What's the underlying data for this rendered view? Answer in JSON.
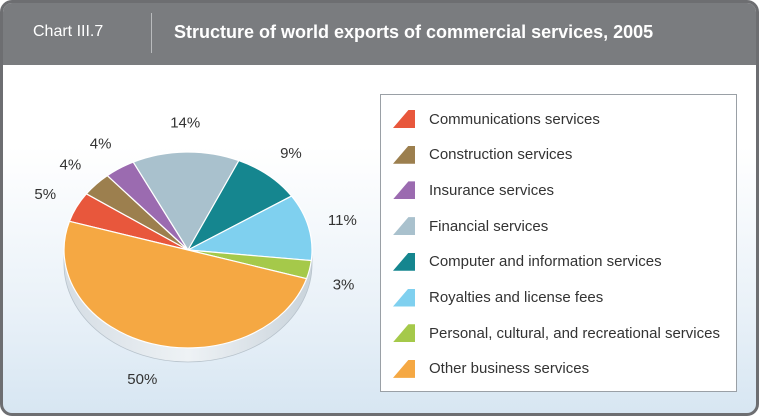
{
  "header": {
    "chart_label": "Chart III.7",
    "title": "Structure of world exports of commercial services, 2005"
  },
  "chart_data": {
    "type": "pie",
    "title": "Structure of world exports of commercial services, 2005",
    "legend_position": "right",
    "slices": [
      {
        "name": "Communications services",
        "value": 5,
        "label": "5%",
        "color": "#e8573c"
      },
      {
        "name": "Construction services",
        "value": 4,
        "label": "4%",
        "color": "#9c7f4e"
      },
      {
        "name": "Insurance services",
        "value": 4,
        "label": "4%",
        "color": "#9b6bb0"
      },
      {
        "name": "Financial services",
        "value": 14,
        "label": "14%",
        "color": "#a9c1cd"
      },
      {
        "name": "Computer and information services",
        "value": 9,
        "label": "9%",
        "color": "#15868f"
      },
      {
        "name": "Royalties and license fees",
        "value": 11,
        "label": "11%",
        "color": "#7fd0ef"
      },
      {
        "name": "Personal, cultural, and recreational services",
        "value": 3,
        "label": "3%",
        "color": "#a5c94a"
      },
      {
        "name": "Other business services",
        "value": 50,
        "label": "50%",
        "color": "#f5a843"
      }
    ]
  }
}
